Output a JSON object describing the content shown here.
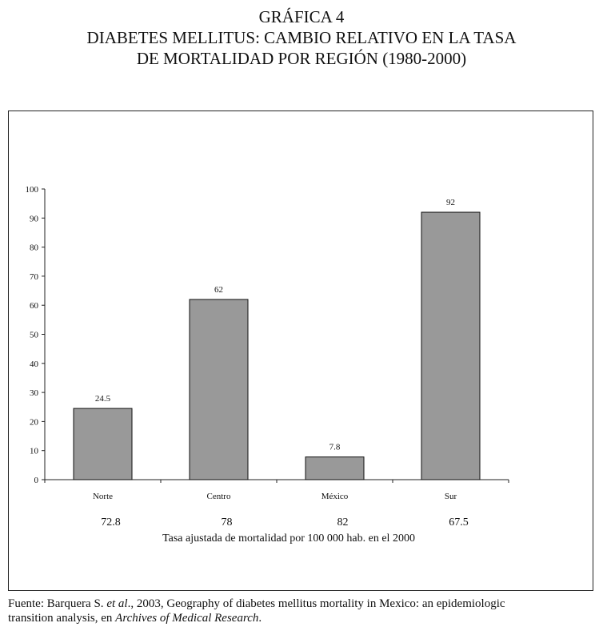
{
  "heading": {
    "label": "GRÁFICA 4",
    "line1": "DIABETES MELLITUS: CAMBIO RELATIVO EN LA TASA",
    "line2": "DE MORTALIDAD POR REGIÓN (1980-2000)"
  },
  "chart_data": {
    "type": "bar",
    "categories": [
      "Norte",
      "Centro",
      "México",
      "Sur"
    ],
    "values": [
      24.5,
      62,
      7.8,
      92
    ],
    "value_labels": [
      "24.5",
      "62",
      "7.8",
      "92"
    ],
    "ylim": [
      0,
      100
    ],
    "yticks": [
      0,
      10,
      20,
      30,
      40,
      50,
      60,
      70,
      80,
      90,
      100
    ],
    "grid": false,
    "bar_color": "#999999",
    "secondary_values": [
      "72.8",
      "78",
      "82",
      "67.5"
    ],
    "secondary_label": "Tasa ajustada de mortalidad por 100 000 hab. en el 2000"
  },
  "source": {
    "prefix": "Fuente: Barquera S. ",
    "etal": "et al",
    "middle": "., 2003, Geography of diabetes mellitus mortality in Mexico: an epidemiologic",
    "line2_prefix": "transition analysis, en ",
    "journal": "Archives of Medical Research",
    "line2_suffix": "."
  }
}
